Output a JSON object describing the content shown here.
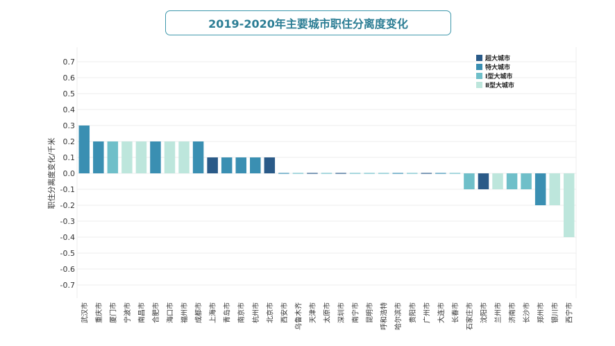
{
  "chart_data": {
    "type": "bar",
    "title": "2019-2020年主要城市职住分离度变化",
    "ylabel": "职住分离度变化/千米",
    "xlabel": "",
    "ylim": [
      -0.7,
      0.7
    ],
    "yticks": [
      0.7,
      0.6,
      0.5,
      0.4,
      0.3,
      0.2,
      0.1,
      0.0,
      -0.1,
      -0.2,
      -0.3,
      -0.4,
      -0.5,
      -0.6,
      -0.7
    ],
    "ytick_labels": [
      "0.7",
      "0.6",
      "0.5",
      "0.4",
      "0.3",
      "0.2",
      "0.1",
      "0.0",
      "-0.1",
      "-0.2",
      "-0.3",
      "-0.4",
      "-0.5",
      "-0.6",
      "-0.7"
    ],
    "grid": true,
    "legend_position": "top-right",
    "categories": [
      "武汉市",
      "重庆市",
      "厦门市",
      "宁波市",
      "南昌市",
      "合肥市",
      "海口市",
      "福州市",
      "成都市",
      "上海市",
      "青岛市",
      "南京市",
      "杭州市",
      "北京市",
      "西安市",
      "乌鲁木齐",
      "天津市",
      "太原市",
      "深圳市",
      "南宁市",
      "昆明市",
      "呼和浩特",
      "哈尔滨市",
      "贵阳市",
      "广州市",
      "大连市",
      "长春市",
      "石家庄市",
      "沈阳市",
      "兰州市",
      "济南市",
      "长沙市",
      "郑州市",
      "银川市",
      "西宁市"
    ],
    "values": [
      0.3,
      0.2,
      0.2,
      0.2,
      0.2,
      0.2,
      0.2,
      0.2,
      0.2,
      0.1,
      0.1,
      0.1,
      0.1,
      0.1,
      0.0,
      0.0,
      0.0,
      0.0,
      0.0,
      0.0,
      0.0,
      0.0,
      0.0,
      0.0,
      0.0,
      0.0,
      0.0,
      -0.1,
      -0.1,
      -0.1,
      -0.1,
      -0.1,
      -0.2,
      -0.2,
      -0.4
    ],
    "groups": [
      "特大城市",
      "特大城市",
      "Ⅰ型大城市",
      "Ⅱ型大城市",
      "Ⅱ型大城市",
      "特大城市",
      "Ⅱ型大城市",
      "Ⅱ型大城市",
      "特大城市",
      "超大城市",
      "特大城市",
      "特大城市",
      "特大城市",
      "超大城市",
      "特大城市",
      "Ⅰ型大城市",
      "超大城市",
      "Ⅰ型大城市",
      "超大城市",
      "Ⅰ型大城市",
      "Ⅰ型大城市",
      "Ⅰ型大城市",
      "特大城市",
      "Ⅰ型大城市",
      "超大城市",
      "特大城市",
      "Ⅰ型大城市",
      "Ⅰ型大城市",
      "超大城市",
      "Ⅱ型大城市",
      "Ⅰ型大城市",
      "Ⅰ型大城市",
      "特大城市",
      "Ⅱ型大城市",
      "Ⅱ型大城市"
    ],
    "legend": [
      {
        "name": "超大城市",
        "color": "#2a5a88"
      },
      {
        "name": "特大城市",
        "color": "#3a8fb2"
      },
      {
        "name": "Ⅰ型大城市",
        "color": "#6fbfc9"
      },
      {
        "name": "Ⅱ型大城市",
        "color": "#bde6dc"
      }
    ]
  }
}
